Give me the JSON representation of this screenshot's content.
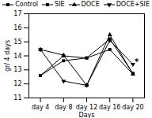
{
  "chart_data": {
    "type": "line",
    "xlabel": "Days",
    "ylabel": "gr/ 4 days",
    "x": [
      4,
      8,
      12,
      16,
      20
    ],
    "xlim": [
      2,
      22
    ],
    "xticks": [
      {
        "value": 4,
        "label": "day 4"
      },
      {
        "value": 8,
        "label": "day 8"
      },
      {
        "value": 12,
        "label": "day 12"
      },
      {
        "value": 16,
        "label": "day 16"
      },
      {
        "value": 20,
        "label": "day 20"
      }
    ],
    "ylim": [
      11,
      17
    ],
    "yticks": [
      11,
      12,
      13,
      14,
      15,
      16,
      17
    ],
    "series": [
      {
        "name": "Control",
        "color": "#000000",
        "marker": "square",
        "line_style": "solid",
        "values": [
          12.6,
          14.0,
          13.85,
          15.2,
          12.75
        ]
      },
      {
        "name": "SIE",
        "color": "#000000",
        "marker": "square",
        "line_style": "solid",
        "values": [
          12.6,
          13.65,
          13.85,
          14.45,
          12.7
        ]
      },
      {
        "name": "DOCE",
        "color": "#000000",
        "marker": "triangle-up",
        "line_style": "solid",
        "values": [
          14.45,
          14.05,
          11.9,
          15.5,
          12.7
        ]
      },
      {
        "name": "DOCE+SIE",
        "color": "#000000",
        "marker": "triangle-down",
        "line_style": "solid",
        "values": [
          14.45,
          12.2,
          11.9,
          15.1,
          13.4
        ]
      }
    ],
    "annotations": [
      {
        "text": "*",
        "x": 20.3,
        "y": 13.55
      }
    ],
    "legend": "upper right"
  }
}
